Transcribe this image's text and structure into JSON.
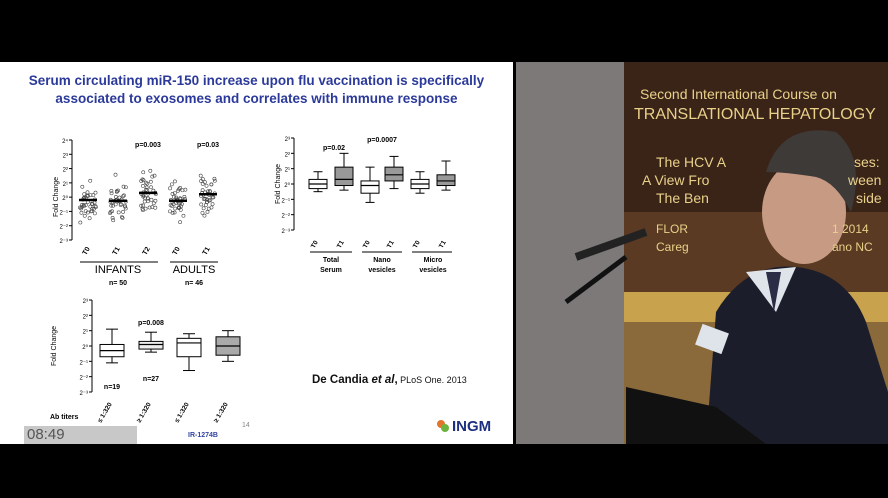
{
  "slide": {
    "title_line1": "Serum circulating miR-150 increase upon flu vaccination is specifically",
    "title_line2": "associated to exosomes and correlates with immune response",
    "citation_author": "De Candia ",
    "citation_etal": "et al",
    "citation_sep": ",",
    "citation_journal": " PLoS One. 2013",
    "logo_text": "INGM",
    "slide_number": "14",
    "hidden_label": "IR-1274B"
  },
  "timer": {
    "text": "08:49"
  },
  "video": {
    "banner_line1": "Second International Course on",
    "banner_line2": "TRANSLATIONAL HEPATOLOGY",
    "banner_line3": "The HCV A",
    "banner_line3b": "ses:",
    "banner_line4": "A View Fro",
    "banner_line4b": "ween",
    "banner_line5": "The Ben",
    "banner_line5b": "side",
    "banner_line6": "FLOR",
    "banner_line6b": "1 2014",
    "banner_line7": "Careg",
    "banner_line7b": "ano NC"
  },
  "chart_data": [
    {
      "type": "scatter",
      "ylabel": "Fold Change",
      "yticks": [
        "2⁴",
        "2³",
        "2²",
        "2¹",
        "2⁰",
        "2⁻¹",
        "2⁻²",
        "2⁻³"
      ],
      "ylim": [
        -3,
        4
      ],
      "categories": [
        "T0",
        "T1",
        "T2",
        "T0",
        "T1"
      ],
      "group_labels": [
        "INFANTS",
        "ADULTS"
      ],
      "group_counts": [
        "n= 50",
        "n= 46"
      ],
      "pvalues": [
        "p=0.003",
        "p=0.03"
      ],
      "means": [
        -0.2,
        -0.25,
        0.3,
        -0.25,
        0.2
      ]
    },
    {
      "type": "box",
      "ylabel": "Fold Change",
      "yticks": [
        "2³",
        "2²",
        "2¹",
        "2⁰",
        "2⁻¹",
        "2⁻²",
        "2⁻³"
      ],
      "ylim": [
        -3,
        3
      ],
      "categories": [
        "T0",
        "T1",
        "T0",
        "T1",
        "T0",
        "T1"
      ],
      "group_labels": [
        "Total Serum",
        "Nano vesicles",
        "Micro vesicles"
      ],
      "pvalues": [
        "p=0.02",
        "p=0.0007"
      ],
      "series": [
        {
          "name": "T0",
          "min": -0.5,
          "q1": -0.3,
          "median": 0.0,
          "q3": 0.3,
          "max": 0.8
        },
        {
          "name": "T1",
          "min": -0.4,
          "q1": -0.1,
          "median": 0.3,
          "q3": 1.1,
          "max": 2.0
        },
        {
          "name": "T0",
          "min": -1.2,
          "q1": -0.6,
          "median": -0.1,
          "q3": 0.2,
          "max": 1.1
        },
        {
          "name": "T1",
          "min": -0.3,
          "q1": 0.2,
          "median": 0.6,
          "q3": 1.1,
          "max": 1.8
        },
        {
          "name": "T0",
          "min": -0.6,
          "q1": -0.3,
          "median": 0.0,
          "q3": 0.3,
          "max": 0.8
        },
        {
          "name": "T1",
          "min": -0.4,
          "q1": -0.1,
          "median": 0.2,
          "q3": 0.6,
          "max": 1.5
        }
      ]
    },
    {
      "type": "box",
      "ylabel": "Fold Change",
      "yticks": [
        "2³",
        "2²",
        "2¹",
        "2⁰",
        "2⁻¹",
        "2⁻²",
        "2⁻³"
      ],
      "ylim": [
        -3,
        3
      ],
      "categories": [
        "≤ 1:320",
        "≥ 1:320",
        "≤ 1:320",
        "≥ 1:320"
      ],
      "xgroup_label": "Ab titers",
      "pvalues": [
        "p=0.008"
      ],
      "counts": [
        "n=19",
        "n=27"
      ],
      "series": [
        {
          "min": -1.1,
          "q1": -0.7,
          "median": -0.3,
          "q3": 0.1,
          "max": 1.1
        },
        {
          "min": -0.4,
          "q1": -0.2,
          "median": 0.1,
          "q3": 0.3,
          "max": 0.9
        },
        {
          "min": -1.6,
          "q1": -0.7,
          "median": 0.2,
          "q3": 0.5,
          "max": 0.8
        },
        {
          "min": -1.0,
          "q1": -0.6,
          "median": 0.0,
          "q3": 0.6,
          "max": 1.0
        }
      ]
    }
  ]
}
